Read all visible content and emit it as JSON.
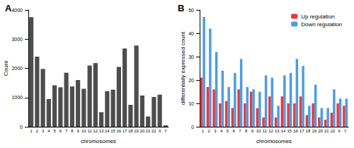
{
  "chart_data": [
    {
      "type": "bar",
      "title": "A",
      "x_label": "chromosomes",
      "y_label": "Count",
      "categories": [
        "1",
        "2",
        "3",
        "4",
        "5",
        "6",
        "7",
        "8",
        "9",
        "10",
        "11",
        "12",
        "13",
        "14",
        "15",
        "16",
        "17",
        "18",
        "19",
        "20",
        "21",
        "22",
        "X",
        "Y"
      ],
      "values": [
        3750,
        2400,
        1980,
        950,
        1420,
        1350,
        1850,
        1380,
        1600,
        1300,
        2100,
        2180,
        500,
        1220,
        1270,
        2050,
        2680,
        750,
        2780,
        1070,
        350,
        1020,
        1100,
        50
      ],
      "color": "#4d4d4d",
      "ylim": [
        0,
        4000
      ],
      "yticks": [
        0,
        1000,
        2000,
        3000,
        4000
      ],
      "grid": false
    },
    {
      "type": "bar",
      "title": "B",
      "x_label": "chromosomes",
      "y_label": "differentially expressed count",
      "categories": [
        "1",
        "2",
        "3",
        "4",
        "5",
        "6",
        "7",
        "8",
        "9",
        "10",
        "11",
        "12",
        "13",
        "14",
        "15",
        "16",
        "17",
        "18",
        "19",
        "20",
        "21",
        "22",
        "X",
        "Y"
      ],
      "series": [
        {
          "name": "Up regulation",
          "color": "#e8393d",
          "values": [
            21,
            17,
            16,
            10,
            11,
            8,
            16,
            10,
            15,
            8,
            4,
            13,
            4,
            13,
            10,
            10,
            13,
            5,
            10,
            4,
            3,
            6,
            10,
            9
          ]
        },
        {
          "name": "Down regulation",
          "color": "#4d9de0",
          "values": [
            47,
            42,
            32,
            24,
            17,
            23,
            29,
            17,
            16,
            15,
            22,
            21,
            9,
            22,
            23,
            29,
            26,
            9,
            18,
            8,
            8,
            16,
            12,
            12
          ]
        }
      ],
      "ylim": [
        0,
        50
      ],
      "yticks": [
        0,
        10,
        20,
        30,
        40,
        50
      ],
      "grid": false,
      "legend": "top-right"
    }
  ]
}
